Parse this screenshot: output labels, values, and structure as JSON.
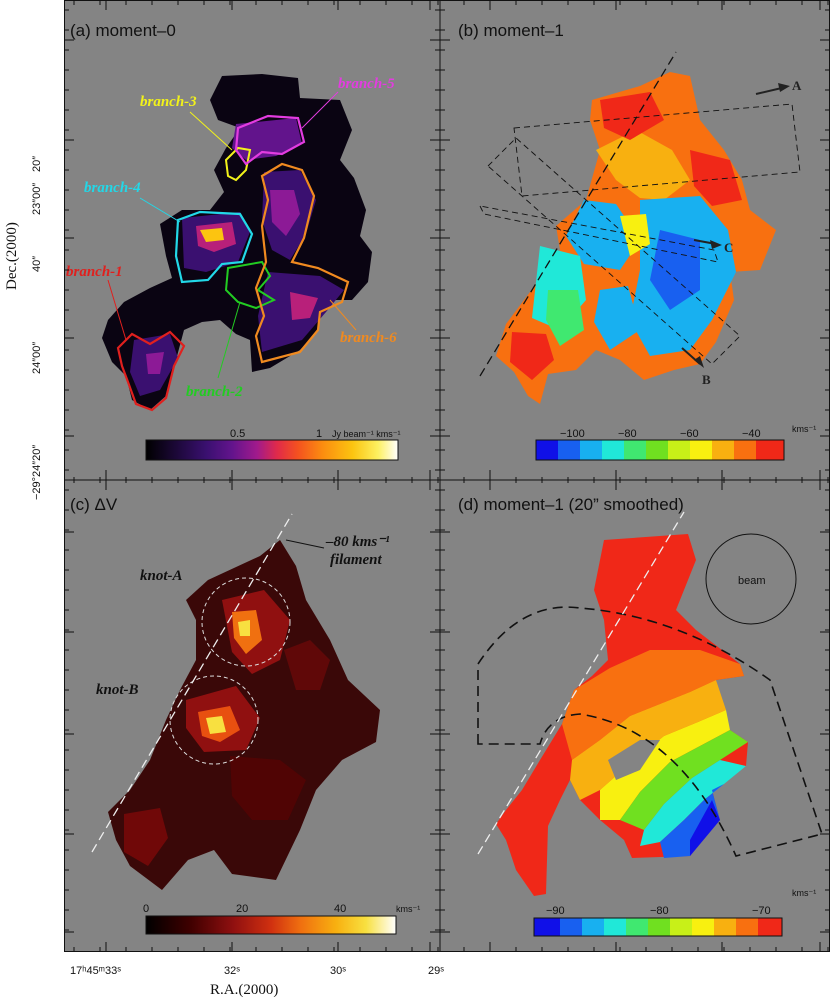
{
  "panels": {
    "a": {
      "title": "(a) moment–0",
      "colorbar_label": "Jy beam⁻¹ kms⁻¹",
      "colorbar_ticks": [
        "0.5",
        "1"
      ]
    },
    "b": {
      "title": "(b) moment–1",
      "colorbar_label": "kms⁻¹",
      "colorbar_ticks": [
        "−100",
        "−80",
        "−60",
        "−40"
      ],
      "cuts": [
        "A",
        "B",
        "C"
      ]
    },
    "c": {
      "title": "(c) ΔV",
      "colorbar_label": "kms⁻¹",
      "colorbar_ticks": [
        "0",
        "20",
        "40"
      ]
    },
    "d": {
      "title": "(d) moment–1 (20” smoothed)",
      "colorbar_label": "kms⁻¹",
      "colorbar_ticks": [
        "−90",
        "−80",
        "−70"
      ],
      "beam_label": "beam"
    }
  },
  "branches": [
    {
      "label": "branch-1",
      "color": "#e0201e"
    },
    {
      "label": "branch-2",
      "color": "#22cc22"
    },
    {
      "label": "branch-3",
      "color": "#f2f21a"
    },
    {
      "label": "branch-4",
      "color": "#22d8e8"
    },
    {
      "label": "branch-5",
      "color": "#e33ce0"
    },
    {
      "label": "branch-6",
      "color": "#f08a20"
    }
  ],
  "annotations": {
    "filament_line1": "–80 kms⁻¹",
    "filament_line2": "filament",
    "knot_a": "knot-A",
    "knot_b": "knot-B"
  },
  "axes": {
    "ylabel": "Dec.(2000)",
    "xlabel": "R.A.(2000)",
    "dec_ticks_upper": [
      "23″00″",
      "20″",
      "40″",
      "24″00″",
      "−29°24″20″"
    ],
    "ra_ticks": [
      "17ʰ45ᵐ33ˢ",
      "32ˢ",
      "30ˢ",
      "29ˢ"
    ]
  },
  "colors": {
    "background_gray": "#848484",
    "moment0_scale": [
      "#000000",
      "#1c0838",
      "#3a1070",
      "#62148c",
      "#8c1a96",
      "#b8207a",
      "#e02a4a",
      "#f45020",
      "#fb8c10",
      "#fcc410",
      "#fdf060",
      "#ffffff"
    ],
    "velocity_scale": [
      "#1010e8",
      "#1860f0",
      "#18b0f0",
      "#20e8d8",
      "#40e870",
      "#70e020",
      "#c8f018",
      "#f8f010",
      "#f8b010",
      "#f87010",
      "#f02818"
    ],
    "dispersion_scale": [
      "#000000",
      "#280000",
      "#500000",
      "#780808",
      "#a01010",
      "#c82810",
      "#e85010",
      "#f88010",
      "#f8b010",
      "#f8e030",
      "#fff8a0",
      "#ffffff"
    ]
  }
}
